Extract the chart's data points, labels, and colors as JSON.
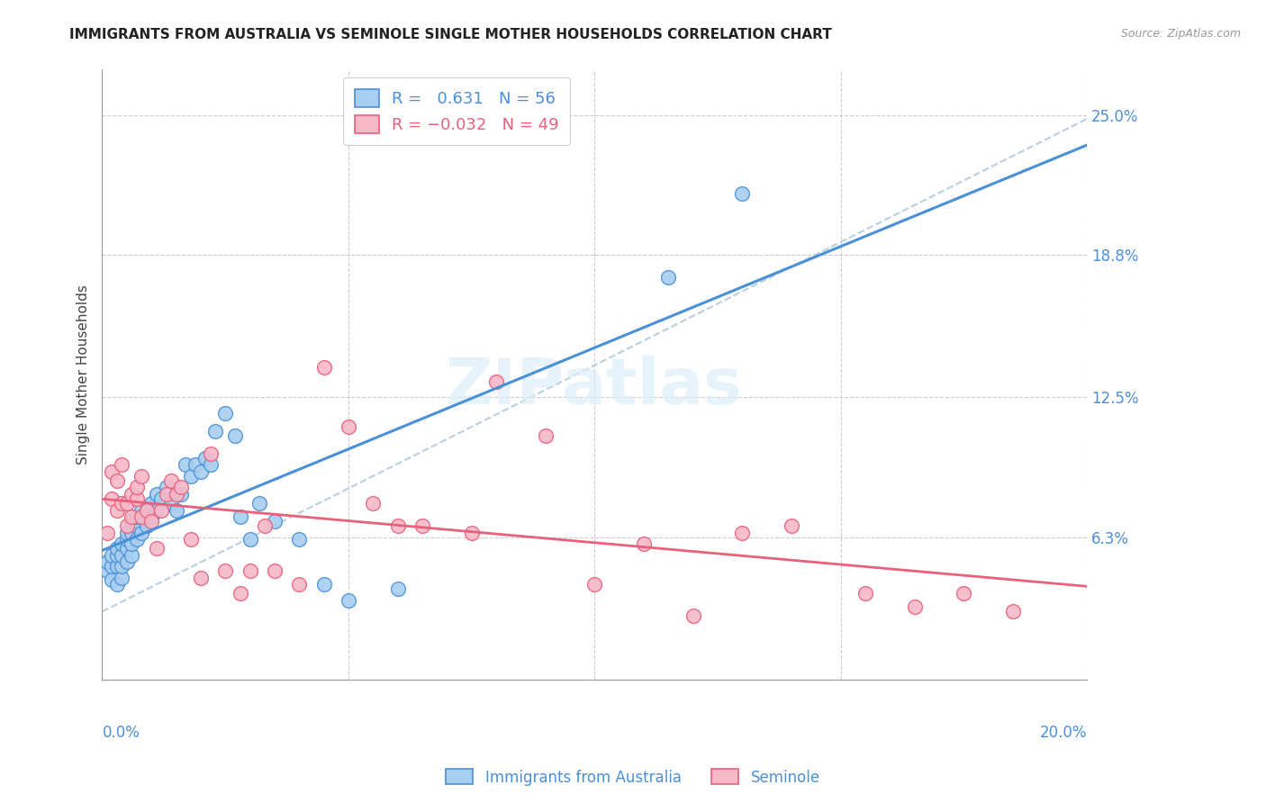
{
  "title": "IMMIGRANTS FROM AUSTRALIA VS SEMINOLE SINGLE MOTHER HOUSEHOLDS CORRELATION CHART",
  "source": "Source: ZipAtlas.com",
  "ylabel": "Single Mother Households",
  "yticks": [
    0.0,
    0.063,
    0.125,
    0.188,
    0.25
  ],
  "ytick_labels": [
    "",
    "6.3%",
    "12.5%",
    "18.8%",
    "25.0%"
  ],
  "xmin": 0.0,
  "xmax": 0.2,
  "ymin": 0.0,
  "ymax": 0.27,
  "blue_color": "#a8cef0",
  "pink_color": "#f7b8c8",
  "blue_line_color": "#4a90d9",
  "pink_line_color": "#e8607a",
  "dashed_line_color": "#b8cfe0",
  "legend_label1": "Immigrants from Australia",
  "legend_label2": "Seminole",
  "title_fontsize": 11,
  "tick_color": "#4a90d9",
  "blue_scatter_x": [
    0.001,
    0.001,
    0.002,
    0.002,
    0.002,
    0.003,
    0.003,
    0.003,
    0.003,
    0.004,
    0.004,
    0.004,
    0.004,
    0.005,
    0.005,
    0.005,
    0.005,
    0.006,
    0.006,
    0.006,
    0.006,
    0.007,
    0.007,
    0.007,
    0.008,
    0.008,
    0.009,
    0.009,
    0.01,
    0.01,
    0.011,
    0.011,
    0.012,
    0.013,
    0.014,
    0.015,
    0.016,
    0.017,
    0.018,
    0.019,
    0.02,
    0.021,
    0.022,
    0.023,
    0.025,
    0.027,
    0.028,
    0.03,
    0.032,
    0.035,
    0.04,
    0.045,
    0.05,
    0.06,
    0.115,
    0.13
  ],
  "blue_scatter_y": [
    0.048,
    0.052,
    0.044,
    0.05,
    0.055,
    0.042,
    0.05,
    0.055,
    0.058,
    0.045,
    0.05,
    0.055,
    0.06,
    0.052,
    0.058,
    0.062,
    0.065,
    0.055,
    0.06,
    0.065,
    0.07,
    0.062,
    0.068,
    0.072,
    0.065,
    0.075,
    0.068,
    0.075,
    0.072,
    0.078,
    0.075,
    0.082,
    0.08,
    0.085,
    0.078,
    0.075,
    0.082,
    0.095,
    0.09,
    0.095,
    0.092,
    0.098,
    0.095,
    0.11,
    0.118,
    0.108,
    0.072,
    0.062,
    0.078,
    0.07,
    0.062,
    0.042,
    0.035,
    0.04,
    0.178,
    0.215
  ],
  "pink_scatter_x": [
    0.001,
    0.002,
    0.002,
    0.003,
    0.003,
    0.004,
    0.004,
    0.005,
    0.005,
    0.006,
    0.006,
    0.007,
    0.007,
    0.008,
    0.008,
    0.009,
    0.01,
    0.011,
    0.012,
    0.013,
    0.014,
    0.015,
    0.016,
    0.018,
    0.02,
    0.022,
    0.025,
    0.028,
    0.03,
    0.033,
    0.035,
    0.04,
    0.045,
    0.05,
    0.055,
    0.06,
    0.065,
    0.075,
    0.08,
    0.09,
    0.1,
    0.11,
    0.12,
    0.13,
    0.14,
    0.155,
    0.165,
    0.175,
    0.185
  ],
  "pink_scatter_y": [
    0.065,
    0.08,
    0.092,
    0.075,
    0.088,
    0.078,
    0.095,
    0.068,
    0.078,
    0.072,
    0.082,
    0.08,
    0.085,
    0.072,
    0.09,
    0.075,
    0.07,
    0.058,
    0.075,
    0.082,
    0.088,
    0.082,
    0.085,
    0.062,
    0.045,
    0.1,
    0.048,
    0.038,
    0.048,
    0.068,
    0.048,
    0.042,
    0.138,
    0.112,
    0.078,
    0.068,
    0.068,
    0.065,
    0.132,
    0.108,
    0.042,
    0.06,
    0.028,
    0.065,
    0.068,
    0.038,
    0.032,
    0.038,
    0.03
  ]
}
